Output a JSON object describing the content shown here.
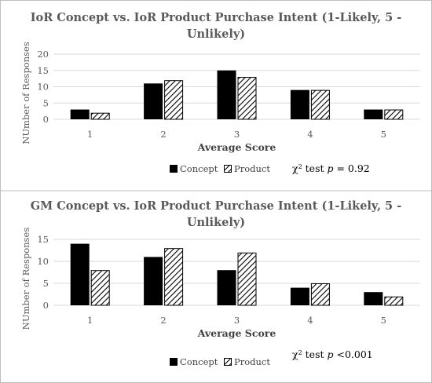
{
  "chart_data": [
    {
      "type": "bar",
      "title_lines": [
        "IoR Concept vs. IoR Product Purchase Intent (1-Likely,  5 -",
        "Unlikely)"
      ],
      "xlabel": "Average Score",
      "ylabel": "NUmber of Responses",
      "categories": [
        "1",
        "2",
        "3",
        "4",
        "5"
      ],
      "ylim": [
        0,
        20
      ],
      "yticks": [
        "0",
        "5",
        "10",
        "15",
        "20"
      ],
      "grid": true,
      "legend_position": "bottom-center",
      "series": [
        {
          "name": "Concept",
          "values": [
            3,
            11,
            15,
            9,
            3
          ]
        },
        {
          "name": "Product",
          "values": [
            2,
            12,
            13,
            9,
            3
          ]
        }
      ],
      "annotation": {
        "chi": "χ",
        "sup": "2",
        "text": " test ",
        "p": "p",
        "value": " = 0.92"
      }
    },
    {
      "type": "bar",
      "title_lines": [
        "GM Concept vs. IoR Product Purchase Intent (1-Likely,  5 -",
        "Unlikely)"
      ],
      "xlabel": "Average Score",
      "ylabel": "NUmber of Responses",
      "categories": [
        "1",
        "2",
        "3",
        "4",
        "5"
      ],
      "ylim": [
        0,
        15
      ],
      "yticks": [
        "0",
        "5",
        "10",
        "15"
      ],
      "grid": true,
      "legend_position": "bottom-center",
      "series": [
        {
          "name": "Concept",
          "values": [
            14,
            11,
            8,
            4,
            3
          ]
        },
        {
          "name": "Product",
          "values": [
            8,
            13,
            12,
            5,
            2
          ]
        }
      ],
      "annotation": {
        "chi": "χ",
        "sup": "2",
        "text": " test ",
        "p": "p",
        "value": " <0.001"
      }
    }
  ],
  "colors": {
    "concept": "#000000",
    "product_hatch": "#000000",
    "grid": "#d9d9d9",
    "border": "#bfbfbf"
  }
}
